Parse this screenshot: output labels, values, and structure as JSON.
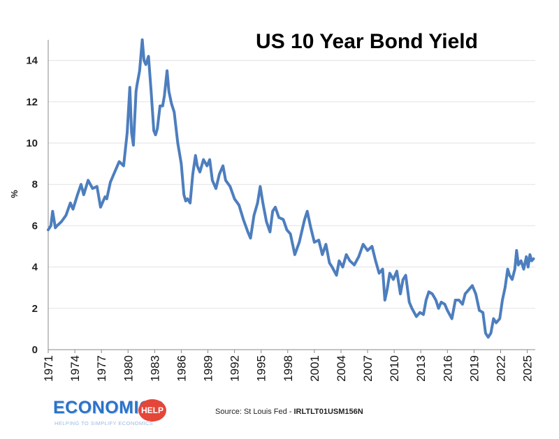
{
  "chart_data": {
    "type": "line",
    "title": "US 10 Year Bond Yield",
    "xlabel": "",
    "ylabel": "%",
    "xlim": [
      1971,
      2025.9
    ],
    "ylim": [
      0,
      15
    ],
    "yticks": [
      0,
      2,
      4,
      6,
      8,
      10,
      12,
      14
    ],
    "xticks": [
      "1971",
      "1974",
      "1977",
      "1980",
      "1983",
      "1986",
      "1989",
      "1992",
      "1995",
      "1998",
      "2001",
      "2004",
      "2007",
      "2010",
      "2013",
      "2016",
      "2019",
      "2022",
      "2025"
    ],
    "grid": "horizontal",
    "line_color": "#4d7ebe",
    "series": [
      {
        "x": [
          1971.0,
          1971.3,
          1971.5,
          1971.8,
          1972.0,
          1972.5,
          1973.0,
          1973.5,
          1973.8,
          1974.3,
          1974.7,
          1975.0,
          1975.5,
          1976.0,
          1976.5,
          1976.9,
          1977.4,
          1977.6,
          1978.0,
          1978.5,
          1979.0,
          1979.5,
          1979.9,
          1980.2,
          1980.4,
          1980.6,
          1980.9,
          1981.0,
          1981.3,
          1981.6,
          1981.8,
          1982.0,
          1982.3,
          1982.6,
          1982.9,
          1983.1,
          1983.3,
          1983.6,
          1983.9,
          1984.1,
          1984.4,
          1984.6,
          1984.9,
          1985.2,
          1985.6,
          1986.0,
          1986.3,
          1986.5,
          1986.7,
          1987.0,
          1987.3,
          1987.6,
          1987.8,
          1988.1,
          1988.5,
          1988.9,
          1989.2,
          1989.5,
          1989.9,
          1990.3,
          1990.7,
          1991.0,
          1991.5,
          1992.0,
          1992.5,
          1993.0,
          1993.5,
          1993.8,
          1994.2,
          1994.6,
          1994.9,
          1995.2,
          1995.6,
          1996.0,
          1996.3,
          1996.6,
          1997.0,
          1997.5,
          1997.9,
          1998.3,
          1998.8,
          1999.3,
          1999.9,
          2000.2,
          2000.6,
          2001.0,
          2001.5,
          2001.9,
          2002.3,
          2002.7,
          2003.0,
          2003.5,
          2003.8,
          2004.2,
          2004.6,
          2005.0,
          2005.5,
          2006.0,
          2006.5,
          2007.0,
          2007.5,
          2007.9,
          2008.3,
          2008.7,
          2008.95,
          2009.2,
          2009.5,
          2009.9,
          2010.3,
          2010.7,
          2011.0,
          2011.3,
          2011.7,
          2012.0,
          2012.5,
          2012.9,
          2013.3,
          2013.6,
          2013.9,
          2014.3,
          2014.7,
          2015.0,
          2015.3,
          2015.7,
          2016.0,
          2016.5,
          2016.9,
          2017.3,
          2017.7,
          2018.0,
          2018.4,
          2018.8,
          2019.2,
          2019.6,
          2020.0,
          2020.3,
          2020.6,
          2020.9,
          2021.2,
          2021.5,
          2021.9,
          2022.2,
          2022.5,
          2022.8,
          2023.0,
          2023.3,
          2023.6,
          2023.8,
          2024.0,
          2024.3,
          2024.6,
          2024.9,
          2025.1,
          2025.3,
          2025.5,
          2025.7
        ],
        "values": [
          5.8,
          6.0,
          6.7,
          5.9,
          6.0,
          6.2,
          6.5,
          7.1,
          6.8,
          7.5,
          8.0,
          7.5,
          8.2,
          7.8,
          7.9,
          6.9,
          7.4,
          7.3,
          8.1,
          8.6,
          9.1,
          8.9,
          10.5,
          12.7,
          10.5,
          9.9,
          12.5,
          12.8,
          13.5,
          15.0,
          14.0,
          13.8,
          14.2,
          12.5,
          10.6,
          10.4,
          10.7,
          11.8,
          11.8,
          12.3,
          13.5,
          12.5,
          11.9,
          11.5,
          10.0,
          9.0,
          7.5,
          7.2,
          7.3,
          7.1,
          8.5,
          9.4,
          8.9,
          8.6,
          9.2,
          8.9,
          9.2,
          8.2,
          7.8,
          8.5,
          8.9,
          8.2,
          7.9,
          7.3,
          7.0,
          6.3,
          5.7,
          5.4,
          6.5,
          7.1,
          7.9,
          7.1,
          6.2,
          5.7,
          6.7,
          6.9,
          6.4,
          6.3,
          5.8,
          5.6,
          4.6,
          5.2,
          6.3,
          6.7,
          5.9,
          5.2,
          5.3,
          4.6,
          5.1,
          4.2,
          4.0,
          3.6,
          4.3,
          4.0,
          4.6,
          4.3,
          4.1,
          4.5,
          5.1,
          4.8,
          5.0,
          4.3,
          3.7,
          3.9,
          2.4,
          2.9,
          3.7,
          3.4,
          3.8,
          2.7,
          3.4,
          3.6,
          2.3,
          2.0,
          1.6,
          1.8,
          1.7,
          2.4,
          2.8,
          2.7,
          2.4,
          2.0,
          2.3,
          2.2,
          1.9,
          1.5,
          2.4,
          2.4,
          2.2,
          2.7,
          2.9,
          3.1,
          2.7,
          1.9,
          1.8,
          0.8,
          0.6,
          0.8,
          1.5,
          1.3,
          1.5,
          2.4,
          3.0,
          3.9,
          3.6,
          3.4,
          3.9,
          4.8,
          4.1,
          4.3,
          3.9,
          4.5,
          4.0,
          4.6,
          4.3,
          4.4
        ]
      }
    ]
  },
  "source": {
    "prefix": "Source: St Louis Fed - ",
    "code": "IRLTLT01USM156N"
  },
  "logo": {
    "word": "ECONOMICS",
    "badge": "HELP",
    "tagline": "HELPING TO SIMPLIFY ECONOMICS"
  }
}
